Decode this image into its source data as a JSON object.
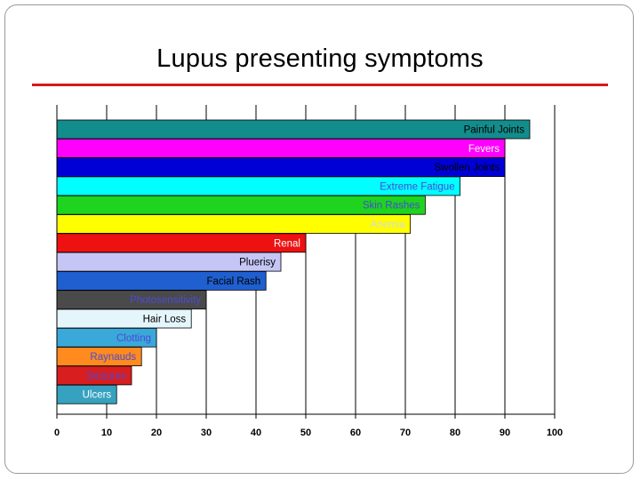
{
  "slide": {
    "title": "Lupus presenting symptoms",
    "accent_color": "#d7191c"
  },
  "chart_data": {
    "type": "bar",
    "orientation": "horizontal",
    "title": "",
    "xlabel": "",
    "ylabel": "",
    "xlim": [
      0,
      100
    ],
    "x_ticks": [
      0,
      10,
      20,
      30,
      40,
      50,
      60,
      70,
      80,
      90,
      100
    ],
    "grid": "vertical",
    "legend": "none",
    "categories": [
      "Painful Joints",
      "Fevers",
      "Swollen Joints",
      "Extreme Fatigue",
      "Skin Rashes",
      "Anemia",
      "Renal",
      "Pluerisy",
      "Facial Rash",
      "Photosensitivity",
      "Hair Loss",
      "Clotting",
      "Raynauds",
      "Seizures",
      "Ulcers"
    ],
    "values": [
      95,
      90,
      90,
      81,
      74,
      71,
      50,
      45,
      42,
      30,
      27,
      20,
      17,
      15,
      12
    ],
    "colors": [
      "#138c8c",
      "#ff00ff",
      "#0000d6",
      "#00ffff",
      "#1ed41e",
      "#ffff00",
      "#ee1111",
      "#c6c6f6",
      "#1f5fd0",
      "#4a4a4a",
      "#e4f6fc",
      "#3aa8d8",
      "#ff8a1e",
      "#d81e1e",
      "#36a2c0"
    ],
    "label_colors": [
      "#000000",
      "#ffffff",
      "#000000",
      "#4a4ad8",
      "#4a4ad8",
      "#d8d8d8",
      "#ffffff",
      "#000000",
      "#000000",
      "#4a4ad8",
      "#000000",
      "#4a4ad8",
      "#4a4ad8",
      "#4a4ad8",
      "#ffffff"
    ]
  }
}
